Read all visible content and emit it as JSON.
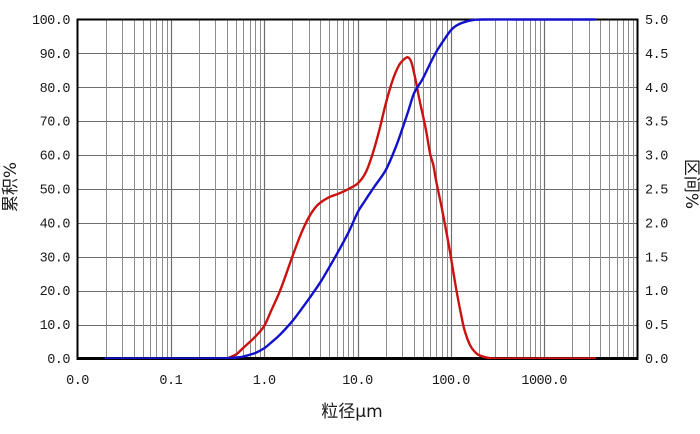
{
  "chart_data": {
    "type": "line",
    "title": "",
    "legend": "none",
    "background": "#ffffff",
    "border_color": "#000000",
    "grid": {
      "major_color": "#6e6e6e",
      "minor_color": "#8d8d8d",
      "x_minor": "log-decade-2-to-9",
      "y_minor": "none"
    },
    "x_axis": {
      "title": "粒径μm",
      "scale": "log",
      "min": 0.01,
      "max": 10000,
      "decades": 6,
      "tick_labels": [
        "0.0",
        "0.1",
        "1.0",
        "10.0",
        "100.0",
        "1000.0"
      ]
    },
    "y_axis_left": {
      "title": "累积%",
      "min": 0,
      "max": 100,
      "step": 10,
      "tick_labels": [
        "0.0",
        "10.0",
        "20.0",
        "30.0",
        "40.0",
        "50.0",
        "60.0",
        "70.0",
        "80.0",
        "90.0",
        "100.0"
      ]
    },
    "y_axis_right": {
      "title": "区间%",
      "min": 0,
      "max": 5,
      "step": 0.5,
      "tick_labels": [
        "0.0",
        "0.5",
        "1.0",
        "1.5",
        "2.0",
        "2.5",
        "3.0",
        "3.5",
        "4.0",
        "4.5",
        "5.0"
      ]
    },
    "series_x_end_um": 3500,
    "series": [
      {
        "name": "interval-percent",
        "label": "区间%",
        "axis": "right",
        "color": "#cc1111",
        "width": 2.4,
        "points": [
          [
            0.4,
            0
          ],
          [
            0.5,
            0.06
          ],
          [
            0.6,
            0.16
          ],
          [
            0.8,
            0.32
          ],
          [
            1.0,
            0.48
          ],
          [
            1.2,
            0.72
          ],
          [
            1.5,
            1.02
          ],
          [
            2.0,
            1.5
          ],
          [
            2.5,
            1.85
          ],
          [
            3.0,
            2.08
          ],
          [
            3.5,
            2.22
          ],
          [
            4.0,
            2.3
          ],
          [
            5.0,
            2.38
          ],
          [
            6.0,
            2.42
          ],
          [
            7.0,
            2.46
          ],
          [
            8.0,
            2.5
          ],
          [
            10,
            2.58
          ],
          [
            12,
            2.72
          ],
          [
            14,
            2.95
          ],
          [
            17,
            3.35
          ],
          [
            20,
            3.75
          ],
          [
            24,
            4.12
          ],
          [
            28,
            4.33
          ],
          [
            32,
            4.42
          ],
          [
            35,
            4.44
          ],
          [
            38,
            4.36
          ],
          [
            42,
            4.1
          ],
          [
            46,
            3.82
          ],
          [
            50,
            3.6
          ],
          [
            55,
            3.32
          ],
          [
            60,
            3.02
          ],
          [
            65,
            2.85
          ],
          [
            70,
            2.6
          ],
          [
            80,
            2.22
          ],
          [
            90,
            1.85
          ],
          [
            100,
            1.5
          ],
          [
            115,
            1.0
          ],
          [
            130,
            0.62
          ],
          [
            140,
            0.42
          ],
          [
            160,
            0.2
          ],
          [
            180,
            0.1
          ],
          [
            200,
            0.05
          ],
          [
            250,
            0.01
          ],
          [
            300,
            0
          ],
          [
            500,
            0
          ],
          [
            1000,
            0
          ],
          [
            2000,
            0
          ],
          [
            3500,
            0
          ]
        ]
      },
      {
        "name": "cumulative-percent",
        "label": "累积%",
        "axis": "left",
        "color": "#1111cc",
        "width": 2.4,
        "points": [
          [
            0.02,
            0
          ],
          [
            0.1,
            0
          ],
          [
            0.2,
            0
          ],
          [
            0.3,
            0.05
          ],
          [
            0.4,
            0.1
          ],
          [
            0.5,
            0.3
          ],
          [
            0.6,
            0.6
          ],
          [
            0.8,
            1.6
          ],
          [
            1.0,
            3.0
          ],
          [
            1.2,
            4.8
          ],
          [
            1.5,
            7.2
          ],
          [
            2.0,
            11.0
          ],
          [
            2.5,
            14.5
          ],
          [
            3.0,
            17.5
          ],
          [
            4.0,
            22.5
          ],
          [
            5.0,
            27.0
          ],
          [
            6.0,
            30.8
          ],
          [
            8.0,
            37.2
          ],
          [
            10,
            43
          ],
          [
            12,
            46.5
          ],
          [
            15,
            50.5
          ],
          [
            20,
            55.5
          ],
          [
            25,
            61.5
          ],
          [
            30,
            67.5
          ],
          [
            35,
            73
          ],
          [
            40,
            78
          ],
          [
            45,
            80.5
          ],
          [
            50,
            82.5
          ],
          [
            60,
            87
          ],
          [
            70,
            90.5
          ],
          [
            80,
            93
          ],
          [
            100,
            96.8
          ],
          [
            120,
            98.5
          ],
          [
            150,
            99.5
          ],
          [
            180,
            99.9
          ],
          [
            220,
            100
          ],
          [
            500,
            100
          ],
          [
            1000,
            100
          ],
          [
            2000,
            100
          ],
          [
            3500,
            100
          ]
        ]
      }
    ]
  }
}
